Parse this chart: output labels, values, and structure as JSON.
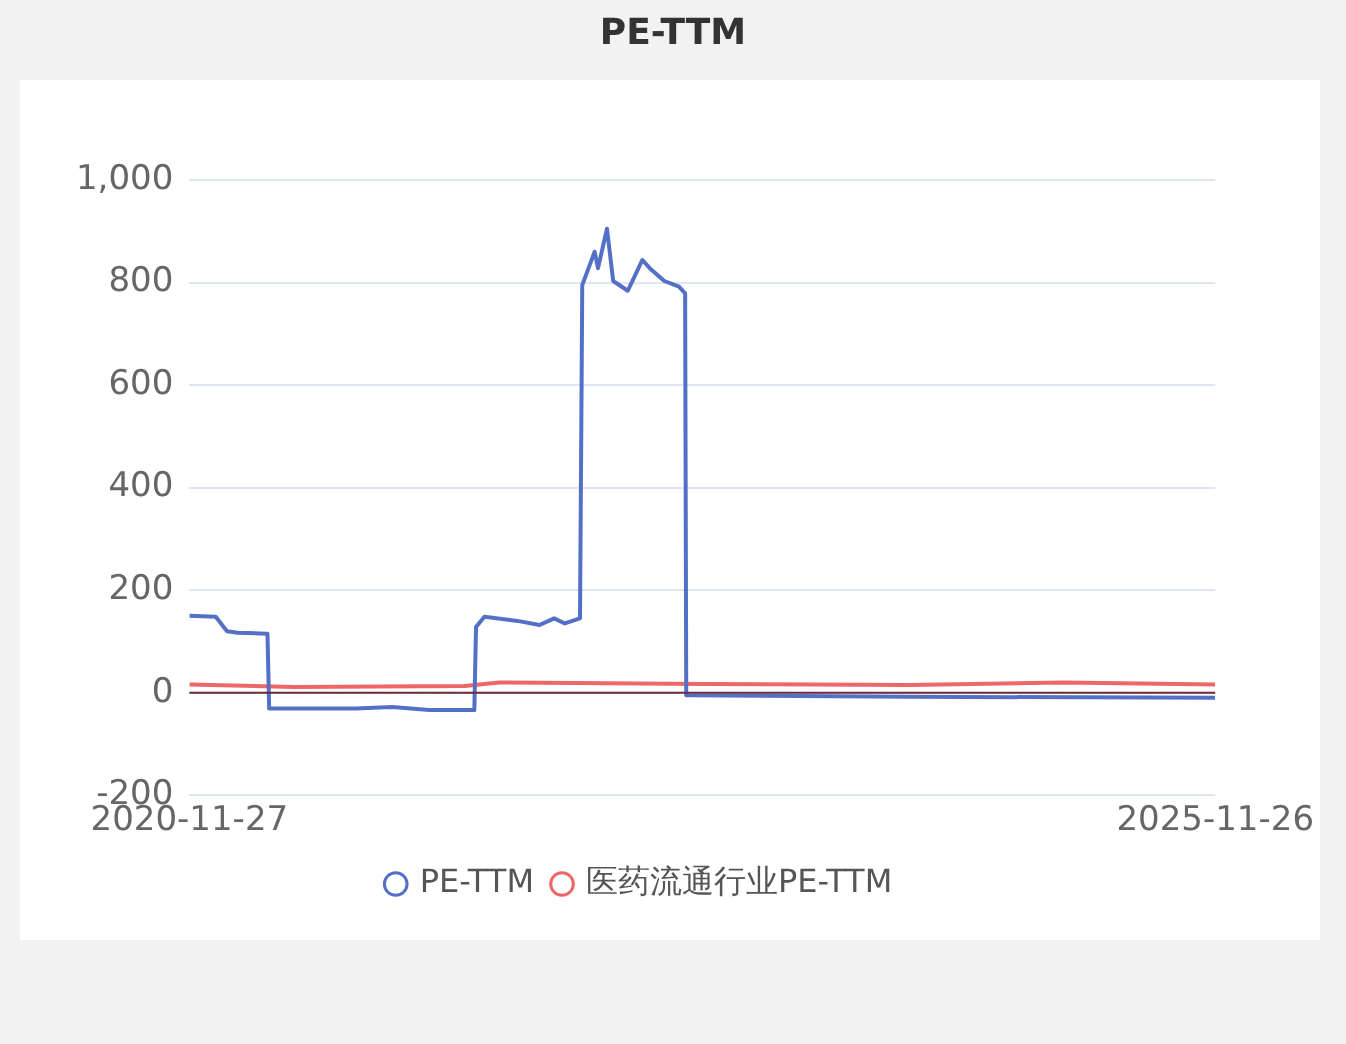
{
  "chart_data": {
    "type": "line",
    "title": "PE-TTM",
    "xlim": [
      "2020-11-27",
      "2025-11-26"
    ],
    "xticks": [
      "2020-11-27",
      "2025-11-26"
    ],
    "ylim": [
      -200,
      1000
    ],
    "yticks": [
      -200,
      0,
      200,
      400,
      600,
      800,
      {
        "value": 1000,
        "label": "1,000"
      }
    ],
    "grid": "y",
    "legend": "bottom",
    "line_style": "solid",
    "ref_lines": [
      {
        "axis": "y",
        "value": 0,
        "color": "#6e2a3a"
      }
    ],
    "series": [
      {
        "name": "PE-TTM",
        "color": "#5470c6",
        "x": [
          "2020-11-27",
          "2021-01-13",
          "2021-02-02",
          "2021-02-21",
          "2021-04-15",
          "2021-04-18",
          "2021-09-19",
          "2021-11-23",
          "2022-01-28",
          "2022-04-18",
          "2022-04-21",
          "2022-05-06",
          "2022-07-04",
          "2022-08-12",
          "2022-09-07",
          "2022-09-26",
          "2022-10-23",
          "2022-10-27",
          "2022-11-18",
          "2022-11-24",
          "2022-12-10",
          "2022-12-21",
          "2023-01-16",
          "2023-02-11",
          "2023-02-24",
          "2023-03-22",
          "2023-04-17",
          "2023-04-28",
          "2023-04-30",
          "2024-06-01",
          "2025-11-26"
        ],
        "values": [
          150,
          148,
          120,
          117,
          115,
          -31,
          -31,
          -28,
          -34,
          -34,
          128,
          148,
          140,
          132,
          145,
          135,
          145,
          795,
          860,
          828,
          905,
          803,
          784,
          844,
          828,
          803,
          792,
          779,
          -5,
          -8,
          -10
        ]
      },
      {
        "name": "医药流通行业PE-TTM",
        "color": "#ee6666",
        "x": [
          "2020-11-27",
          "2021-06-01",
          "2022-04-01",
          "2022-06-01",
          "2023-06-01",
          "2024-06-01",
          "2025-03-01",
          "2025-11-26"
        ],
        "values": [
          16,
          11,
          13,
          20,
          17,
          15,
          20,
          16
        ]
      }
    ]
  }
}
